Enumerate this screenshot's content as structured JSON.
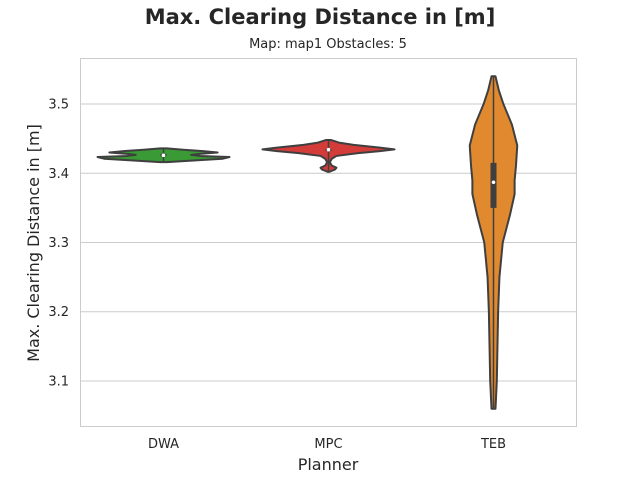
{
  "chart_data": {
    "type": "violin",
    "title": "Max. Clearing Distance in [m]",
    "subtitle": "Map: map1 Obstacles: 5",
    "xlabel": "Planner",
    "ylabel": "Max. Clearing Distance in [m]",
    "categories": [
      "DWA",
      "MPC",
      "TEB"
    ],
    "ylim": [
      3.035,
      3.565
    ],
    "yticks": [
      3.1,
      3.2,
      3.3,
      3.4,
      3.5
    ],
    "grid": "horizontal",
    "series": [
      {
        "name": "DWA",
        "color": "#3a9a36",
        "median": 3.426,
        "q1": 3.4245,
        "q3": 3.428,
        "min": 3.416,
        "max": 3.436,
        "density": [
          [
            3.416,
            0.05
          ],
          [
            3.419,
            0.55
          ],
          [
            3.421,
            0.9
          ],
          [
            3.4235,
            1.0
          ],
          [
            3.425,
            0.55
          ],
          [
            3.4265,
            0.42
          ],
          [
            3.428,
            0.55
          ],
          [
            3.43,
            0.82
          ],
          [
            3.432,
            0.6
          ],
          [
            3.434,
            0.3
          ],
          [
            3.436,
            0.05
          ]
        ]
      },
      {
        "name": "MPC",
        "color": "#d43c3a",
        "median": 3.434,
        "q1": 3.4325,
        "q3": 3.435,
        "min": 3.402,
        "max": 3.448,
        "density": [
          [
            3.402,
            0.01
          ],
          [
            3.4055,
            0.1
          ],
          [
            3.408,
            0.12
          ],
          [
            3.411,
            0.05
          ],
          [
            3.416,
            0.02
          ],
          [
            3.421,
            0.05
          ],
          [
            3.425,
            0.12
          ],
          [
            3.429,
            0.45
          ],
          [
            3.432,
            0.78
          ],
          [
            3.4345,
            1.0
          ],
          [
            3.437,
            0.78
          ],
          [
            3.441,
            0.38
          ],
          [
            3.444,
            0.17
          ],
          [
            3.448,
            0.04
          ]
        ]
      },
      {
        "name": "TEB",
        "color": "#e0892f",
        "median": 3.387,
        "q1": 3.35,
        "q3": 3.415,
        "min": 3.06,
        "max": 3.54,
        "density": [
          [
            3.06,
            0.03
          ],
          [
            3.1,
            0.05
          ],
          [
            3.15,
            0.06
          ],
          [
            3.2,
            0.07
          ],
          [
            3.25,
            0.09
          ],
          [
            3.3,
            0.14
          ],
          [
            3.34,
            0.25
          ],
          [
            3.37,
            0.32
          ],
          [
            3.39,
            0.32
          ],
          [
            3.41,
            0.34
          ],
          [
            3.44,
            0.36
          ],
          [
            3.47,
            0.28
          ],
          [
            3.5,
            0.15
          ],
          [
            3.52,
            0.08
          ],
          [
            3.54,
            0.03
          ]
        ]
      }
    ]
  }
}
